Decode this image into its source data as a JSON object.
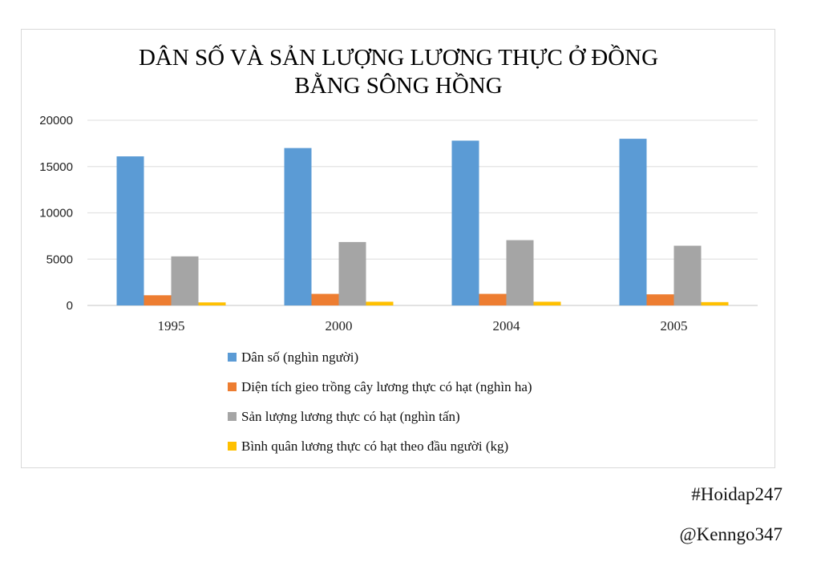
{
  "chart_data": {
    "type": "bar",
    "title_lines": [
      "DÂN SỐ VÀ SẢN LƯỢNG LƯƠNG THỰC Ở ĐỒNG",
      "BẰNG SÔNG HỒNG"
    ],
    "categories": [
      "1995",
      "2000",
      "2004",
      "2005"
    ],
    "series": [
      {
        "name": "Dân số (nghìn người)",
        "color": "#5b9bd5",
        "values": [
          16100,
          17000,
          17800,
          18000
        ]
      },
      {
        "name": "Diện tích gieo trồng cây lương thực có hạt (nghìn ha)",
        "color": "#ed7d31",
        "values": [
          1100,
          1250,
          1250,
          1200
        ]
      },
      {
        "name": "Sản lượng lương thực có hạt (nghìn tấn)",
        "color": "#a5a5a5",
        "values": [
          5300,
          6850,
          7050,
          6450
        ]
      },
      {
        "name": "Bình quân lương thực có hạt theo đầu người (kg)",
        "color": "#ffc000",
        "values": [
          330,
          400,
          400,
          360
        ]
      }
    ],
    "yticks": [
      "0",
      "5000",
      "10000",
      "15000",
      "20000"
    ],
    "ylim": [
      0,
      20000
    ],
    "grid": true,
    "legend_position": "bottom"
  },
  "watermarks": {
    "tag": "#Hoidap247",
    "handle": "@Kenngo347"
  }
}
